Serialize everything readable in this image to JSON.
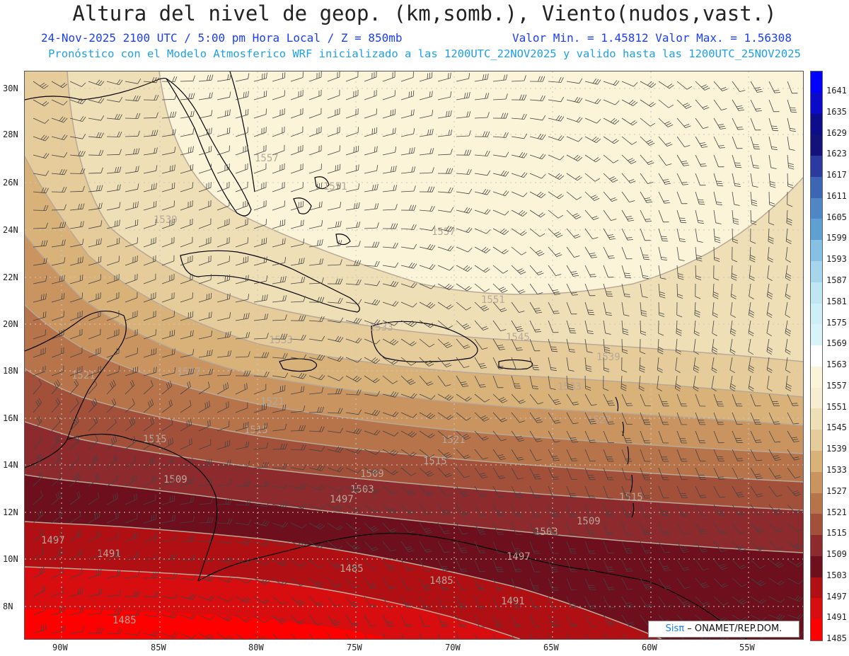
{
  "header": {
    "title": "Altura del nivel de geop. (km,somb.), Viento(nudos,vast.)",
    "date_time": "24-Nov-2025  2100 UTC / 5:00 pm Hora Local / Z = 850mb",
    "min_max": "Valor Min. = 1.45812  Valor Max. = 1.56308",
    "model_info": "Pronóstico con el Modelo Atmosferico WRF inicializado a las 1200UTC_22NOV2025 y valido hasta las  1200UTC_25NOV2025"
  },
  "axes": {
    "lat_labels": [
      "30N",
      "28N",
      "26N",
      "24N",
      "22N",
      "20N",
      "18N",
      "16N",
      "14N",
      "12N",
      "10N",
      "8N"
    ],
    "lon_labels": [
      "90W",
      "85W",
      "80W",
      "75W",
      "70W",
      "65W",
      "60W",
      "55W"
    ]
  },
  "legend": {
    "levels": [
      "1641",
      "1635",
      "1629",
      "1623",
      "1617",
      "1611",
      "1605",
      "1599",
      "1593",
      "1587",
      "1581",
      "1575",
      "1569",
      "1563",
      "1557",
      "1551",
      "1545",
      "1539",
      "1533",
      "1527",
      "1521",
      "1515",
      "1509",
      "1503",
      "1497",
      "1491",
      "1485"
    ],
    "colors": [
      "#0000ff",
      "#0a0ac8",
      "#0d0d8c",
      "#12127a",
      "#2a3a9e",
      "#3c66b4",
      "#4f86c6",
      "#5fa0d2",
      "#86c0e2",
      "#a6d6ec",
      "#bfe6f2",
      "#cdeff5",
      "#d9f4f8",
      "#ffffff",
      "#fbf4d8",
      "#f7edd0",
      "#efdfb6",
      "#e6cc9a",
      "#d9b27a",
      "#c99460",
      "#b7744a",
      "#a2503a",
      "#8c2a2e",
      "#6e0f1e",
      "#b00f14",
      "#d80d10",
      "#ff0000"
    ]
  },
  "contour_labels": [
    "1557",
    "1551",
    "1539",
    "1557",
    "1551",
    "1545",
    "1539",
    "1533",
    "1527",
    "1521",
    "1521",
    "1515",
    "1515",
    "1521",
    "1515",
    "1509",
    "1503",
    "1509",
    "1497",
    "1503",
    "1509",
    "1515",
    "1497",
    "1491",
    "1485",
    "1485",
    "1491",
    "1497",
    "1485",
    "1533",
    "1533",
    "1527"
  ],
  "credit": {
    "brand": "Sisπ",
    "org": "–  ONAMET/REP.DOM."
  }
}
